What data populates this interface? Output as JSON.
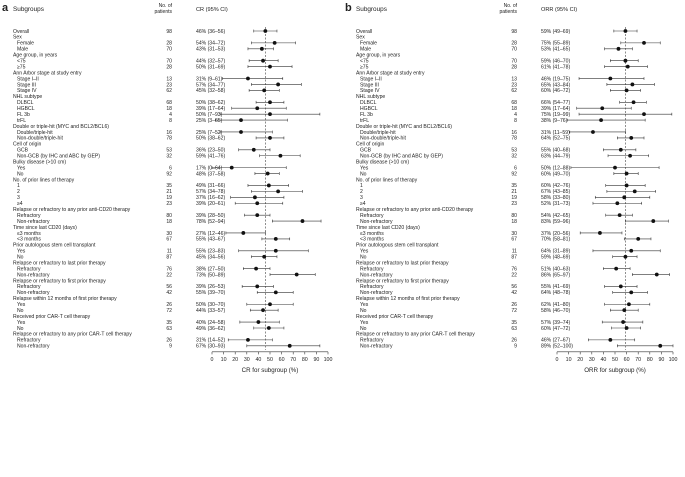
{
  "chart_data": [
    {
      "type": "forest",
      "panel_label": "a",
      "col_subgroups": "Subgroups",
      "col_n": "No. of patients",
      "col_est": "CR (95% CI)",
      "xlabel": "CR for subgroup (%)",
      "xlim": [
        0,
        100
      ],
      "xticks": [
        "0",
        "10",
        "20",
        "30",
        "40",
        "50",
        "60",
        "70",
        "80",
        "90",
        "100"
      ],
      "reference_line": 46,
      "rows": [
        {
          "label": "Overall",
          "n": "98",
          "ci": "46% (36–56)",
          "est": 46,
          "lo": 36,
          "hi": 56
        },
        {
          "header": "Sex"
        },
        {
          "label": "Female",
          "n": "28",
          "ci": "54% (34–72)",
          "est": 54,
          "lo": 34,
          "hi": 72
        },
        {
          "label": "Male",
          "n": "70",
          "ci": "43% (31–53)",
          "est": 43,
          "lo": 31,
          "hi": 53
        },
        {
          "header": "Age group, in years"
        },
        {
          "label": "<75",
          "n": "70",
          "ci": "44% (32–57)",
          "est": 44,
          "lo": 32,
          "hi": 57
        },
        {
          "label": "≥75",
          "n": "28",
          "ci": "50% (31–69)",
          "est": 50,
          "lo": 31,
          "hi": 69
        },
        {
          "header": "Ann Arbor stage at study entry"
        },
        {
          "label": "Stage I–II",
          "n": "13",
          "ci": "31% (9–61)",
          "est": 31,
          "lo": 9,
          "hi": 61
        },
        {
          "label": "Stage III",
          "n": "23",
          "ci": "57% (34–77)",
          "est": 57,
          "lo": 34,
          "hi": 77
        },
        {
          "label": "Stage IV",
          "n": "62",
          "ci": "45% (32–58)",
          "est": 45,
          "lo": 32,
          "hi": 58
        },
        {
          "header": "NHL subtype"
        },
        {
          "label": "DLBCL",
          "n": "68",
          "ci": "50% (38–62)",
          "est": 50,
          "lo": 38,
          "hi": 62
        },
        {
          "label": "HGBCL",
          "n": "18",
          "ci": "39% (17–64)",
          "est": 39,
          "lo": 17,
          "hi": 64
        },
        {
          "label": "FL 3b",
          "n": "4",
          "ci": "50% (7–93)",
          "est": 50,
          "lo": 7,
          "hi": 93
        },
        {
          "label": "trFL",
          "n": "8",
          "ci": "25% (3–65)",
          "est": 25,
          "lo": 3,
          "hi": 65
        },
        {
          "header": "Double or triple-hit (MYC and BCL2/BCL6)"
        },
        {
          "label": "Double/triple-hit",
          "n": "16",
          "ci": "25% (7–52)",
          "est": 25,
          "lo": 7,
          "hi": 52
        },
        {
          "label": "Non-double/triple-hit",
          "n": "78",
          "ci": "50% (38–62)",
          "est": 50,
          "lo": 38,
          "hi": 62
        },
        {
          "header": "Cell of origin"
        },
        {
          "label": "GCB",
          "n": "53",
          "ci": "36% (23–50)",
          "est": 36,
          "lo": 23,
          "hi": 50
        },
        {
          "label": "Non-GCB (by IHC and ABC by GEP)",
          "n": "32",
          "ci": "59% (41–76)",
          "est": 59,
          "lo": 41,
          "hi": 76
        },
        {
          "header": "Bulky disease (>10 cm)"
        },
        {
          "label": "Yes",
          "n": "6",
          "ci": "17% (0–64)",
          "est": 17,
          "lo": 0,
          "hi": 64
        },
        {
          "label": "No",
          "n": "92",
          "ci": "48% (37–58)",
          "est": 48,
          "lo": 37,
          "hi": 58
        },
        {
          "header": "No. of prior lines of therapy"
        },
        {
          "label": "1",
          "n": "35",
          "ci": "49% (31–66)",
          "est": 49,
          "lo": 31,
          "hi": 66
        },
        {
          "label": "2",
          "n": "21",
          "ci": "57% (34–78)",
          "est": 57,
          "lo": 34,
          "hi": 78
        },
        {
          "label": "3",
          "n": "19",
          "ci": "37% (16–62)",
          "est": 37,
          "lo": 16,
          "hi": 62
        },
        {
          "label": "≥4",
          "n": "23",
          "ci": "39% (20–61)",
          "est": 39,
          "lo": 20,
          "hi": 61
        },
        {
          "header": "Relapse or refractory to any prior anti-CD20 therapy"
        },
        {
          "label": "Refractory",
          "n": "80",
          "ci": "39% (28–50)",
          "est": 39,
          "lo": 28,
          "hi": 50
        },
        {
          "label": "Non-refractory",
          "n": "18",
          "ci": "78% (52–94)",
          "est": 78,
          "lo": 52,
          "hi": 94
        },
        {
          "header": "Time since last CD20 (days)"
        },
        {
          "label": "≤3 months",
          "n": "30",
          "ci": "27% (12–46)",
          "est": 27,
          "lo": 12,
          "hi": 46
        },
        {
          "label": "<3 months",
          "n": "67",
          "ci": "55% (43–67)",
          "est": 55,
          "lo": 43,
          "hi": 67
        },
        {
          "header": "Prior autologous stem cell transplant"
        },
        {
          "label": "Yes",
          "n": "11",
          "ci": "55% (23–83)",
          "est": 55,
          "lo": 23,
          "hi": 83
        },
        {
          "label": "No",
          "n": "87",
          "ci": "45% (34–56)",
          "est": 45,
          "lo": 34,
          "hi": 56
        },
        {
          "header": "Relapse or refractory to last prior therapy"
        },
        {
          "label": "Refractory",
          "n": "76",
          "ci": "38% (27–50)",
          "est": 38,
          "lo": 27,
          "hi": 50
        },
        {
          "label": "Non-refractory",
          "n": "22",
          "ci": "73% (50–89)",
          "est": 73,
          "lo": 50,
          "hi": 89
        },
        {
          "header": "Relapse or refractory to first prior therapy"
        },
        {
          "label": "Refractory",
          "n": "56",
          "ci": "39% (26–53)",
          "est": 39,
          "lo": 26,
          "hi": 53
        },
        {
          "label": "Non-refractory",
          "n": "42",
          "ci": "55% (39–70)",
          "est": 55,
          "lo": 39,
          "hi": 70
        },
        {
          "header": "Relapse within 12 months of first prior therapy"
        },
        {
          "label": "Yes",
          "n": "26",
          "ci": "50% (30–70)",
          "est": 50,
          "lo": 30,
          "hi": 70
        },
        {
          "label": "No",
          "n": "72",
          "ci": "44% (33–57)",
          "est": 44,
          "lo": 33,
          "hi": 57
        },
        {
          "header": "Received prior CAR-T cell therapy"
        },
        {
          "label": "Yes",
          "n": "35",
          "ci": "40% (24–58)",
          "est": 40,
          "lo": 24,
          "hi": 58
        },
        {
          "label": "No",
          "n": "63",
          "ci": "49% (36–62)",
          "est": 49,
          "lo": 36,
          "hi": 62
        },
        {
          "header": "Relapse or refractory to any prior CAR-T cell therapy"
        },
        {
          "label": "Refractory",
          "n": "26",
          "ci": "31% (14–52)",
          "est": 31,
          "lo": 14,
          "hi": 52
        },
        {
          "label": "Non-refractory",
          "n": "9",
          "ci": "67% (30–93)",
          "est": 67,
          "lo": 30,
          "hi": 93
        }
      ]
    },
    {
      "type": "forest",
      "panel_label": "b",
      "col_subgroups": "Subgroups",
      "col_n": "No. of patients",
      "col_est": "ORR (95% CI)",
      "xlabel": "ORR for subgroup (%)",
      "xlim": [
        0,
        100
      ],
      "xticks": [
        "0",
        "10",
        "20",
        "30",
        "40",
        "50",
        "60",
        "70",
        "80",
        "90",
        "100"
      ],
      "reference_line": 59,
      "rows": [
        {
          "label": "Overall",
          "n": "98",
          "ci": "59% (49–69)",
          "est": 59,
          "lo": 49,
          "hi": 69
        },
        {
          "header": "Sex"
        },
        {
          "label": "Female",
          "n": "28",
          "ci": "75% (55–89)",
          "est": 75,
          "lo": 55,
          "hi": 89
        },
        {
          "label": "Male",
          "n": "70",
          "ci": "53% (41–65)",
          "est": 53,
          "lo": 41,
          "hi": 65
        },
        {
          "header": "Age group, in years"
        },
        {
          "label": "<75",
          "n": "70",
          "ci": "59% (46–70)",
          "est": 59,
          "lo": 46,
          "hi": 70
        },
        {
          "label": "≥75",
          "n": "28",
          "ci": "61% (41–78)",
          "est": 61,
          "lo": 41,
          "hi": 78
        },
        {
          "header": "Ann Arbor stage at study entry"
        },
        {
          "label": "Stage I–II",
          "n": "13",
          "ci": "46% (19–75)",
          "est": 46,
          "lo": 19,
          "hi": 75
        },
        {
          "label": "Stage III",
          "n": "23",
          "ci": "65% (43–84)",
          "est": 65,
          "lo": 43,
          "hi": 84
        },
        {
          "label": "Stage IV",
          "n": "62",
          "ci": "60% (46–72)",
          "est": 60,
          "lo": 46,
          "hi": 72
        },
        {
          "header": "NHL subtype"
        },
        {
          "label": "DLBCL",
          "n": "68",
          "ci": "66% (54–77)",
          "est": 66,
          "lo": 54,
          "hi": 77
        },
        {
          "label": "HGBCL",
          "n": "18",
          "ci": "39% (17–64)",
          "est": 39,
          "lo": 17,
          "hi": 64
        },
        {
          "label": "FL 3b",
          "n": "4",
          "ci": "75% (19–99)",
          "est": 75,
          "lo": 19,
          "hi": 99
        },
        {
          "label": "trFL",
          "n": "8",
          "ci": "38% (9–76)",
          "est": 38,
          "lo": 9,
          "hi": 76
        },
        {
          "header": "Double or triple-hit (MYC and BCL2/BCL6)"
        },
        {
          "label": "Double/triple-hit",
          "n": "16",
          "ci": "31% (11–59)",
          "est": 31,
          "lo": 11,
          "hi": 59
        },
        {
          "label": "Non-double/triple-hit",
          "n": "78",
          "ci": "64% (52–75)",
          "est": 64,
          "lo": 52,
          "hi": 75
        },
        {
          "header": "Cell of origin"
        },
        {
          "label": "GCB",
          "n": "53",
          "ci": "55% (40–68)",
          "est": 55,
          "lo": 40,
          "hi": 68
        },
        {
          "label": "Non-GCB (by IHC and ABC by GEP)",
          "n": "32",
          "ci": "63% (44–79)",
          "est": 63,
          "lo": 44,
          "hi": 79
        },
        {
          "header": "Bulky disease (>10 cm)"
        },
        {
          "label": "Yes",
          "n": "6",
          "ci": "50% (12–88)",
          "est": 50,
          "lo": 12,
          "hi": 88
        },
        {
          "label": "No",
          "n": "92",
          "ci": "60% (49–70)",
          "est": 60,
          "lo": 49,
          "hi": 70
        },
        {
          "header": "No. of prior lines of therapy"
        },
        {
          "label": "1",
          "n": "35",
          "ci": "60% (42–76)",
          "est": 60,
          "lo": 42,
          "hi": 76
        },
        {
          "label": "2",
          "n": "21",
          "ci": "67% (43–85)",
          "est": 67,
          "lo": 43,
          "hi": 85
        },
        {
          "label": "3",
          "n": "19",
          "ci": "58% (33–80)",
          "est": 58,
          "lo": 33,
          "hi": 80
        },
        {
          "label": "≥4",
          "n": "23",
          "ci": "52% (31–73)",
          "est": 52,
          "lo": 31,
          "hi": 73
        },
        {
          "header": "Relapse or refractory to any prior anti-CD20 therapy"
        },
        {
          "label": "Refractory",
          "n": "80",
          "ci": "54% (42–65)",
          "est": 54,
          "lo": 42,
          "hi": 65
        },
        {
          "label": "Non-refractory",
          "n": "18",
          "ci": "83% (59–96)",
          "est": 83,
          "lo": 59,
          "hi": 96
        },
        {
          "header": "Time since last CD20 (days)"
        },
        {
          "label": "≤3 months",
          "n": "30",
          "ci": "37% (20–56)",
          "est": 37,
          "lo": 20,
          "hi": 56
        },
        {
          "label": "<3 months",
          "n": "67",
          "ci": "70% (58–81)",
          "est": 70,
          "lo": 58,
          "hi": 81
        },
        {
          "header": "Prior autologous stem cell transplant"
        },
        {
          "label": "Yes",
          "n": "11",
          "ci": "64% (31–89)",
          "est": 64,
          "lo": 31,
          "hi": 89
        },
        {
          "label": "No",
          "n": "87",
          "ci": "59% (48–69)",
          "est": 59,
          "lo": 48,
          "hi": 69
        },
        {
          "header": "Relapse or refractory to last prior therapy"
        },
        {
          "label": "Refractory",
          "n": "76",
          "ci": "51% (40–63)",
          "est": 51,
          "lo": 40,
          "hi": 63
        },
        {
          "label": "Non-refractory",
          "n": "22",
          "ci": "86% (65–97)",
          "est": 86,
          "lo": 65,
          "hi": 97
        },
        {
          "header": "Relapse or refractory to first prior therapy"
        },
        {
          "label": "Refractory",
          "n": "56",
          "ci": "55% (41–69)",
          "est": 55,
          "lo": 41,
          "hi": 69
        },
        {
          "label": "Non-refractory",
          "n": "42",
          "ci": "64% (48–78)",
          "est": 64,
          "lo": 48,
          "hi": 78
        },
        {
          "header": "Relapse within 12 months of first prior therapy"
        },
        {
          "label": "Yes",
          "n": "26",
          "ci": "62% (41–80)",
          "est": 62,
          "lo": 41,
          "hi": 80
        },
        {
          "label": "No",
          "n": "72",
          "ci": "58% (46–70)",
          "est": 58,
          "lo": 46,
          "hi": 70
        },
        {
          "header": "Received prior CAR-T cell therapy"
        },
        {
          "label": "Yes",
          "n": "35",
          "ci": "57% (39–74)",
          "est": 57,
          "lo": 39,
          "hi": 74
        },
        {
          "label": "No",
          "n": "63",
          "ci": "60% (47–72)",
          "est": 60,
          "lo": 47,
          "hi": 72
        },
        {
          "header": "Relapse or refractory to any prior CAR-T cell therapy"
        },
        {
          "label": "Refractory",
          "n": "26",
          "ci": "46% (27–67)",
          "est": 46,
          "lo": 27,
          "hi": 67
        },
        {
          "label": "Non-refractory",
          "n": "9",
          "ci": "89% (52–100)",
          "est": 89,
          "lo": 52,
          "hi": 100
        }
      ]
    }
  ]
}
